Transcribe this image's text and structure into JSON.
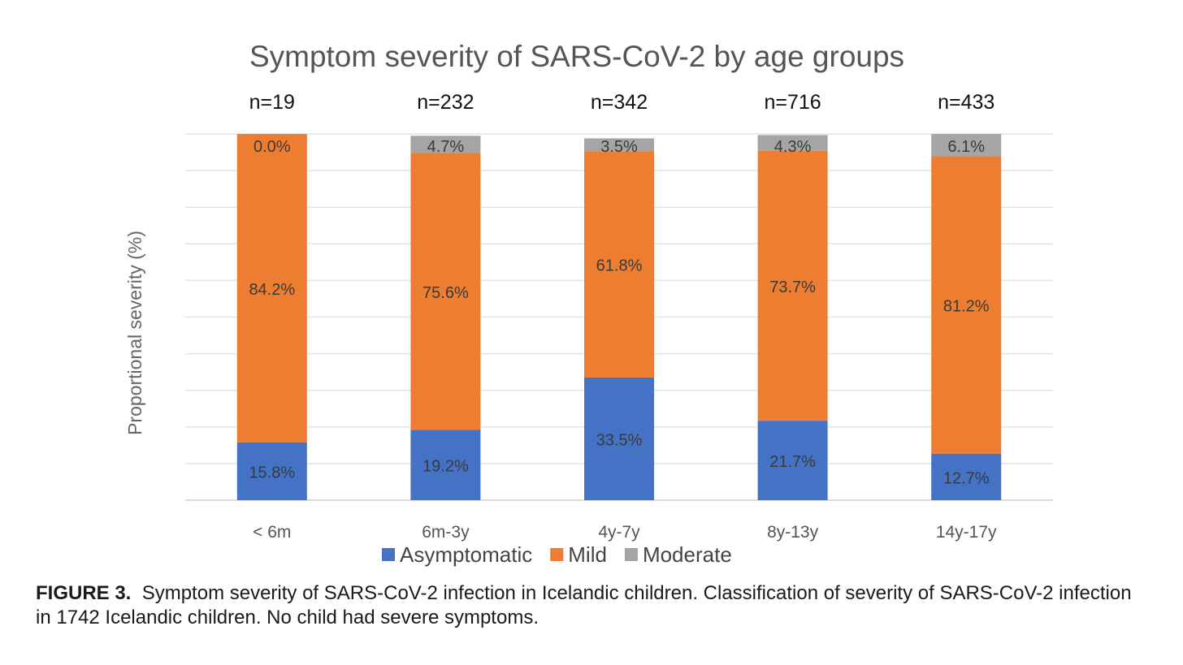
{
  "chart_data": {
    "type": "bar",
    "stacked": true,
    "title": "Symptom severity of SARS-CoV-2 by age groups",
    "ylabel": "Proportional severity (%)",
    "xlabel": "",
    "ylim": [
      0,
      100
    ],
    "grid": true,
    "legend_position": "bottom",
    "categories": [
      "< 6m",
      "6m-3y",
      "4y-7y",
      "8y-13y",
      "14y-17y"
    ],
    "n_labels": [
      "n=19",
      "n=232",
      "n=342",
      "n=716",
      "n=433"
    ],
    "series": [
      {
        "name": "Asymptomatic",
        "color": "#4472C4",
        "values": [
          15.8,
          19.2,
          33.5,
          21.7,
          12.7
        ],
        "labels": [
          "15.8%",
          "19.2%",
          "33.5%",
          "21.7%",
          "12.7%"
        ]
      },
      {
        "name": "Mild",
        "color": "#ED7D31",
        "values": [
          84.2,
          75.6,
          61.8,
          73.7,
          81.2
        ],
        "labels": [
          "84.2%",
          "75.6%",
          "61.8%",
          "73.7%",
          "81.2%"
        ]
      },
      {
        "name": "Moderate",
        "color": "#A5A5A5",
        "values": [
          0.0,
          4.7,
          3.5,
          4.3,
          6.1
        ],
        "labels": [
          "0.0%",
          "4.7%",
          "3.5%",
          "4.3%",
          "6.1%"
        ]
      }
    ]
  },
  "caption": {
    "label": "FIGURE 3.",
    "text": "Symptom severity of SARS-CoV-2 infection in Icelandic children. Classification of severity of SARS-CoV-2 infection in 1742 Icelandic children. No child had severe symptoms."
  }
}
